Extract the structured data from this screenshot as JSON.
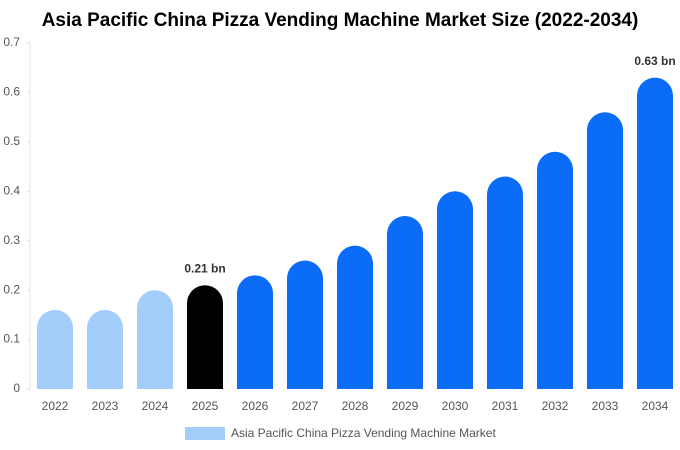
{
  "chart_data": {
    "type": "bar",
    "title": "Asia Pacific China Pizza Vending Machine Market Size (2022-2034)",
    "categories": [
      "2022",
      "2023",
      "2024",
      "2025",
      "2026",
      "2027",
      "2028",
      "2029",
      "2030",
      "2031",
      "2032",
      "2033",
      "2034"
    ],
    "series": [
      {
        "name": "Asia Pacific China Pizza Vending Machine Market",
        "color": "#a3cdfb",
        "values": [
          0.16,
          0.16,
          0.2,
          0.21,
          0.23,
          0.26,
          0.29,
          0.35,
          0.4,
          0.43,
          0.48,
          0.56,
          0.63
        ],
        "value_labels": [
          null,
          null,
          null,
          "0.21 bn",
          null,
          null,
          null,
          null,
          null,
          null,
          null,
          null,
          "0.63 bn"
        ],
        "colors": [
          "#a3cdfb",
          "#a3cdfb",
          "#a3cdfb",
          "#000000",
          "#0a6cf7",
          "#0a6cf7",
          "#0a6cf7",
          "#0a6cf7",
          "#0a6cf7",
          "#0a6cf7",
          "#0a6cf7",
          "#0a6cf7",
          "#0a6cf7"
        ]
      }
    ],
    "ylim": [
      0,
      0.7
    ],
    "yticks": [
      0,
      0.1,
      0.2,
      0.3,
      0.4,
      0.5,
      0.6,
      0.7
    ],
    "grid": false,
    "legend": "bottom"
  }
}
